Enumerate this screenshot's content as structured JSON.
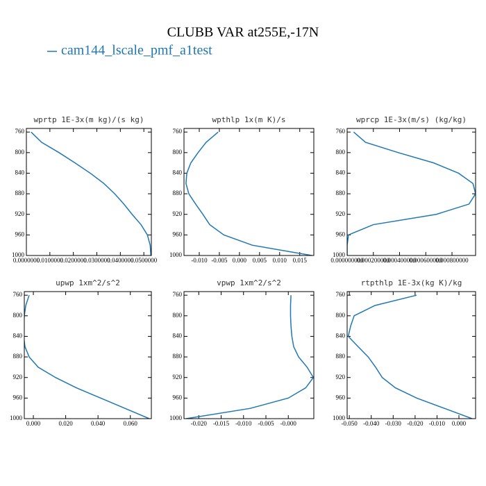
{
  "title": "CLUBB VAR at255E,-17N",
  "legend": {
    "name": "cam144_lscale_pmf_a1test",
    "color": "#1f77b4"
  },
  "chart_data": [
    {
      "type": "line",
      "title": "wprtp  1E-3x(m kg)/(s kg)",
      "y": [
        760,
        780,
        800,
        820,
        840,
        860,
        880,
        900,
        920,
        940,
        960,
        980,
        1000
      ],
      "values": [
        0.002,
        0.0065,
        0.0139,
        0.0207,
        0.0272,
        0.033,
        0.0376,
        0.0415,
        0.045,
        0.0488,
        0.0515,
        0.0527,
        0.053
      ],
      "xlim": [
        0,
        0.0532
      ],
      "xticks": [
        {
          "value": 0,
          "label": "0.0000000"
        },
        {
          "value": 0.01,
          "label": "0.0100000"
        },
        {
          "value": 0.02,
          "label": "0.0200000"
        },
        {
          "value": 0.03,
          "label": "0.0300000"
        },
        {
          "value": 0.04,
          "label": "0.0400000"
        },
        {
          "value": 0.05,
          "label": "0.0500000"
        }
      ],
      "ylim": [
        1000,
        753
      ],
      "yticks": [
        760,
        800,
        840,
        880,
        920,
        960,
        1000
      ]
    },
    {
      "type": "line",
      "title": "wpthlp  1x(m K)/s",
      "y": [
        760,
        780,
        800,
        820,
        840,
        860,
        880,
        900,
        920,
        940,
        960,
        980,
        1000
      ],
      "values": [
        -0.0053,
        -0.0083,
        -0.0103,
        -0.0121,
        -0.0131,
        -0.0133,
        -0.0126,
        -0.0109,
        -0.0091,
        -0.0074,
        -0.0039,
        0.0032,
        0.018
      ],
      "xlim": [
        -0.0138,
        0.0185
      ],
      "xticks": [
        {
          "value": -0.01,
          "label": "-0.010"
        },
        {
          "value": -0.005,
          "label": "-0.005"
        },
        {
          "value": 0,
          "label": "0.000"
        },
        {
          "value": 0.005,
          "label": "0.005"
        },
        {
          "value": 0.01,
          "label": "0.010"
        },
        {
          "value": 0.015,
          "label": "0.015"
        }
      ],
      "ylim": [
        1000,
        753
      ],
      "yticks": [
        760,
        800,
        840,
        880,
        920,
        960,
        1000
      ]
    },
    {
      "type": "line",
      "title": "wprcp  1E-3x(m/s) (kg/kg)",
      "y": [
        760,
        780,
        800,
        820,
        840,
        860,
        880,
        900,
        920,
        940,
        960,
        980,
        1000
      ],
      "values": [
        5e-05,
        0.00014,
        0.00039,
        0.00066,
        0.00085,
        0.00096,
        0.00098,
        0.00093,
        0.00068,
        0.0002,
        1e-05,
        0,
        0
      ],
      "xlim": [
        0,
        0.00098
      ],
      "xticks": [
        {
          "value": 0,
          "label": "0.000000000"
        },
        {
          "value": 0.0002,
          "label": "0.000200000"
        },
        {
          "value": 0.0004,
          "label": "0.000400000"
        },
        {
          "value": 0.0006,
          "label": "0.000600000"
        },
        {
          "value": 0.0008,
          "label": "0.000800000"
        }
      ],
      "ylim": [
        1000,
        753
      ],
      "yticks": [
        760,
        800,
        840,
        880,
        920,
        960,
        1000
      ]
    },
    {
      "type": "line",
      "title": "upwp  1xm^2/s^2",
      "y": [
        760,
        780,
        800,
        820,
        840,
        860,
        880,
        900,
        920,
        940,
        960,
        980,
        1000
      ],
      "values": [
        -0.0026,
        -0.0047,
        -0.0056,
        -0.006,
        -0.006,
        -0.0052,
        -0.0026,
        0.003,
        0.0137,
        0.0266,
        0.0416,
        0.0567,
        0.0717
      ],
      "xlim": [
        -0.0056,
        0.073
      ],
      "xticks": [
        {
          "value": 0,
          "label": "0.000"
        },
        {
          "value": 0.02,
          "label": "0.020"
        },
        {
          "value": 0.04,
          "label": "0.040"
        },
        {
          "value": 0.06,
          "label": "0.060"
        }
      ],
      "ylim": [
        1000,
        753
      ],
      "yticks": [
        760,
        800,
        840,
        880,
        920,
        960,
        1000
      ]
    },
    {
      "type": "line",
      "title": "vpwp  1xm^2/s^2",
      "y": [
        760,
        780,
        800,
        820,
        840,
        860,
        880,
        900,
        920,
        940,
        960,
        980,
        1000
      ],
      "values": [
        0.0006,
        0.0005,
        0.0005,
        0.0006,
        0.0008,
        0.0012,
        0.0023,
        0.0042,
        0.0056,
        0.0039,
        0,
        -0.0085,
        -0.0228
      ],
      "xlim": [
        -0.0233,
        0.0057
      ],
      "xticks": [
        {
          "value": -0.02,
          "label": "-0.020"
        },
        {
          "value": -0.015,
          "label": "-0.015"
        },
        {
          "value": -0.01,
          "label": "-0.010"
        },
        {
          "value": -0.005,
          "label": "-0.005"
        },
        {
          "value": 0,
          "label": "-0.000"
        }
      ],
      "ylim": [
        1000,
        753
      ],
      "yticks": [
        760,
        800,
        840,
        880,
        920,
        960,
        1000
      ]
    },
    {
      "type": "line",
      "title": "rtpthlp  1E-3x(kg K)/kg",
      "y": [
        760,
        780,
        800,
        820,
        840,
        860,
        880,
        900,
        920,
        940,
        960,
        980,
        1000
      ],
      "values": [
        -0.0193,
        -0.0383,
        -0.0478,
        -0.0494,
        -0.0505,
        -0.046,
        -0.0414,
        -0.038,
        -0.035,
        -0.029,
        -0.0193,
        -0.0066,
        0.006
      ],
      "xlim": [
        -0.051,
        0.0076
      ],
      "xticks": [
        {
          "value": -0.05,
          "label": "-0.050"
        },
        {
          "value": -0.04,
          "label": "-0.040"
        },
        {
          "value": -0.03,
          "label": "-0.030"
        },
        {
          "value": -0.02,
          "label": "-0.020"
        },
        {
          "value": -0.01,
          "label": "-0.010"
        },
        {
          "value": 0,
          "label": "0.000"
        }
      ],
      "ylim": [
        1000,
        753
      ],
      "yticks": [
        760,
        800,
        840,
        880,
        920,
        960,
        1000
      ]
    }
  ]
}
